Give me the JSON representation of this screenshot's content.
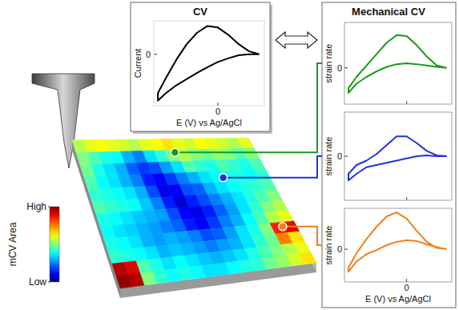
{
  "chart_data": [
    {
      "type": "line",
      "title": "CV",
      "xlabel": "E (V) vs Ag/AgCl",
      "ylabel": "Current",
      "xlim": [
        -0.62,
        0.45
      ],
      "ylim": [
        -1,
        0.65
      ],
      "xticks": [
        0
      ],
      "yticks": [
        0
      ],
      "series": [
        {
          "color": "#000000",
          "x": [
            0.4,
            0.3,
            0.2,
            0.1,
            0.0,
            -0.1,
            -0.2,
            -0.3,
            -0.4,
            -0.5,
            -0.58,
            -0.58,
            -0.5,
            -0.4,
            -0.3,
            -0.2,
            -0.1,
            0.0,
            0.1,
            0.2,
            0.3,
            0.4
          ],
          "values": [
            0.0,
            0.0,
            -0.02,
            -0.08,
            -0.15,
            -0.25,
            -0.36,
            -0.48,
            -0.6,
            -0.75,
            -0.9,
            -0.75,
            -0.45,
            -0.1,
            0.2,
            0.42,
            0.55,
            0.52,
            0.38,
            0.2,
            0.06,
            0.0
          ]
        }
      ]
    },
    {
      "type": "line",
      "title": "Mechanical CV",
      "ylabel": "strain rate",
      "tick_labels": "y",
      "xlim": [
        -0.62,
        0.45
      ],
      "ylim": [
        -0.8,
        1
      ],
      "xticks": [
        0
      ],
      "yticks": [
        0
      ],
      "series": [
        {
          "color": "#1a9a1a",
          "x": [
            0.4,
            0.3,
            0.2,
            0.1,
            0.0,
            -0.1,
            -0.2,
            -0.3,
            -0.4,
            -0.5,
            -0.58,
            -0.58,
            -0.5,
            -0.4,
            -0.3,
            -0.2,
            -0.1,
            0.0,
            0.1,
            0.2,
            0.3,
            0.4
          ],
          "values": [
            0.0,
            0.02,
            0.05,
            0.08,
            0.1,
            0.08,
            0.02,
            -0.08,
            -0.2,
            -0.35,
            -0.55,
            -0.45,
            -0.2,
            0.05,
            0.3,
            0.55,
            0.72,
            0.7,
            0.5,
            0.25,
            0.05,
            0.0
          ]
        }
      ]
    },
    {
      "type": "line",
      "ylabel": "strain rate",
      "tick_labels": "y",
      "xlim": [
        -0.62,
        0.45
      ],
      "ylim": [
        -1,
        1
      ],
      "xticks": [
        0
      ],
      "yticks": [
        0
      ],
      "series": [
        {
          "color": "#1f35d4",
          "x": [
            0.4,
            0.3,
            0.2,
            0.1,
            0.0,
            -0.1,
            -0.2,
            -0.3,
            -0.4,
            -0.5,
            -0.58,
            -0.58,
            -0.5,
            -0.4,
            -0.3,
            -0.2,
            -0.1,
            0.0,
            0.1,
            0.2,
            0.3,
            0.4
          ],
          "values": [
            0.0,
            0.0,
            0.02,
            0.0,
            -0.05,
            -0.1,
            -0.15,
            -0.2,
            -0.25,
            -0.4,
            -0.55,
            -0.4,
            -0.2,
            -0.1,
            0.05,
            0.25,
            0.45,
            0.45,
            0.3,
            0.12,
            0.02,
            0.0
          ]
        }
      ]
    },
    {
      "type": "line",
      "xlabel": "E (V) vs Ag/AgCl",
      "ylabel": "strain rate",
      "xlim": [
        -0.62,
        0.45
      ],
      "ylim": [
        -0.8,
        1
      ],
      "xticks": [
        0
      ],
      "yticks": [
        0
      ],
      "series": [
        {
          "color": "#f07f1a",
          "x": [
            0.4,
            0.3,
            0.2,
            0.1,
            0.0,
            -0.1,
            -0.2,
            -0.3,
            -0.4,
            -0.5,
            -0.58,
            -0.58,
            -0.5,
            -0.4,
            -0.3,
            -0.2,
            -0.1,
            0.0,
            0.1,
            0.2,
            0.3,
            0.4
          ],
          "values": [
            0.0,
            0.05,
            0.12,
            0.2,
            0.22,
            0.18,
            0.1,
            -0.02,
            -0.12,
            -0.3,
            -0.55,
            -0.45,
            -0.1,
            0.25,
            0.55,
            0.8,
            0.9,
            0.75,
            0.45,
            0.18,
            0.03,
            0.0
          ]
        }
      ]
    }
  ],
  "map": {
    "type": "heatmap",
    "cells": [
      [
        0.55,
        0.6,
        0.62,
        0.6,
        0.58,
        0.55,
        0.6,
        0.62,
        0.65,
        0.6,
        0.58,
        0.62,
        0.6,
        0.58,
        0.55,
        0.6
      ],
      [
        0.5,
        0.45,
        0.4,
        0.38,
        0.3,
        0.25,
        0.35,
        0.42,
        0.5,
        0.55,
        0.5,
        0.48,
        0.52,
        0.5,
        0.45,
        0.5
      ],
      [
        0.48,
        0.4,
        0.35,
        0.3,
        0.22,
        0.18,
        0.2,
        0.28,
        0.35,
        0.45,
        0.42,
        0.4,
        0.45,
        0.42,
        0.4,
        0.45
      ],
      [
        0.45,
        0.38,
        0.35,
        0.3,
        0.25,
        0.15,
        0.12,
        0.18,
        0.25,
        0.3,
        0.35,
        0.38,
        0.4,
        0.4,
        0.38,
        0.42
      ],
      [
        0.42,
        0.4,
        0.38,
        0.35,
        0.3,
        0.2,
        0.1,
        0.12,
        0.2,
        0.22,
        0.3,
        0.35,
        0.38,
        0.4,
        0.42,
        0.45
      ],
      [
        0.45,
        0.42,
        0.4,
        0.38,
        0.32,
        0.25,
        0.15,
        0.08,
        0.15,
        0.2,
        0.25,
        0.3,
        0.35,
        0.4,
        0.45,
        0.5
      ],
      [
        0.4,
        0.38,
        0.35,
        0.32,
        0.3,
        0.28,
        0.2,
        0.12,
        0.1,
        0.15,
        0.22,
        0.28,
        0.35,
        0.42,
        0.5,
        0.55
      ],
      [
        0.38,
        0.35,
        0.33,
        0.3,
        0.28,
        0.25,
        0.22,
        0.15,
        0.12,
        0.18,
        0.25,
        0.3,
        0.38,
        0.45,
        0.55,
        0.6
      ],
      [
        0.4,
        0.38,
        0.35,
        0.3,
        0.28,
        0.3,
        0.28,
        0.25,
        0.2,
        0.22,
        0.28,
        0.35,
        0.4,
        0.5,
        0.85,
        0.9
      ],
      [
        0.42,
        0.4,
        0.38,
        0.35,
        0.3,
        0.32,
        0.3,
        0.28,
        0.25,
        0.28,
        0.3,
        0.35,
        0.42,
        0.48,
        0.75,
        0.65
      ],
      [
        0.95,
        0.9,
        0.45,
        0.4,
        0.35,
        0.38,
        0.35,
        0.32,
        0.3,
        0.32,
        0.35,
        0.4,
        0.45,
        0.5,
        0.55,
        0.6
      ],
      [
        0.98,
        0.95,
        0.5,
        0.42,
        0.38,
        0.4,
        0.38,
        0.35,
        0.35,
        0.38,
        0.4,
        0.42,
        0.48,
        0.52,
        0.58,
        0.65
      ]
    ],
    "colorbar": {
      "title": "mCV Area",
      "range": [
        0,
        1
      ],
      "ticks": [
        {
          "value": 1,
          "label": "High"
        },
        {
          "value": 0,
          "label": "Low"
        }
      ]
    }
  }
}
